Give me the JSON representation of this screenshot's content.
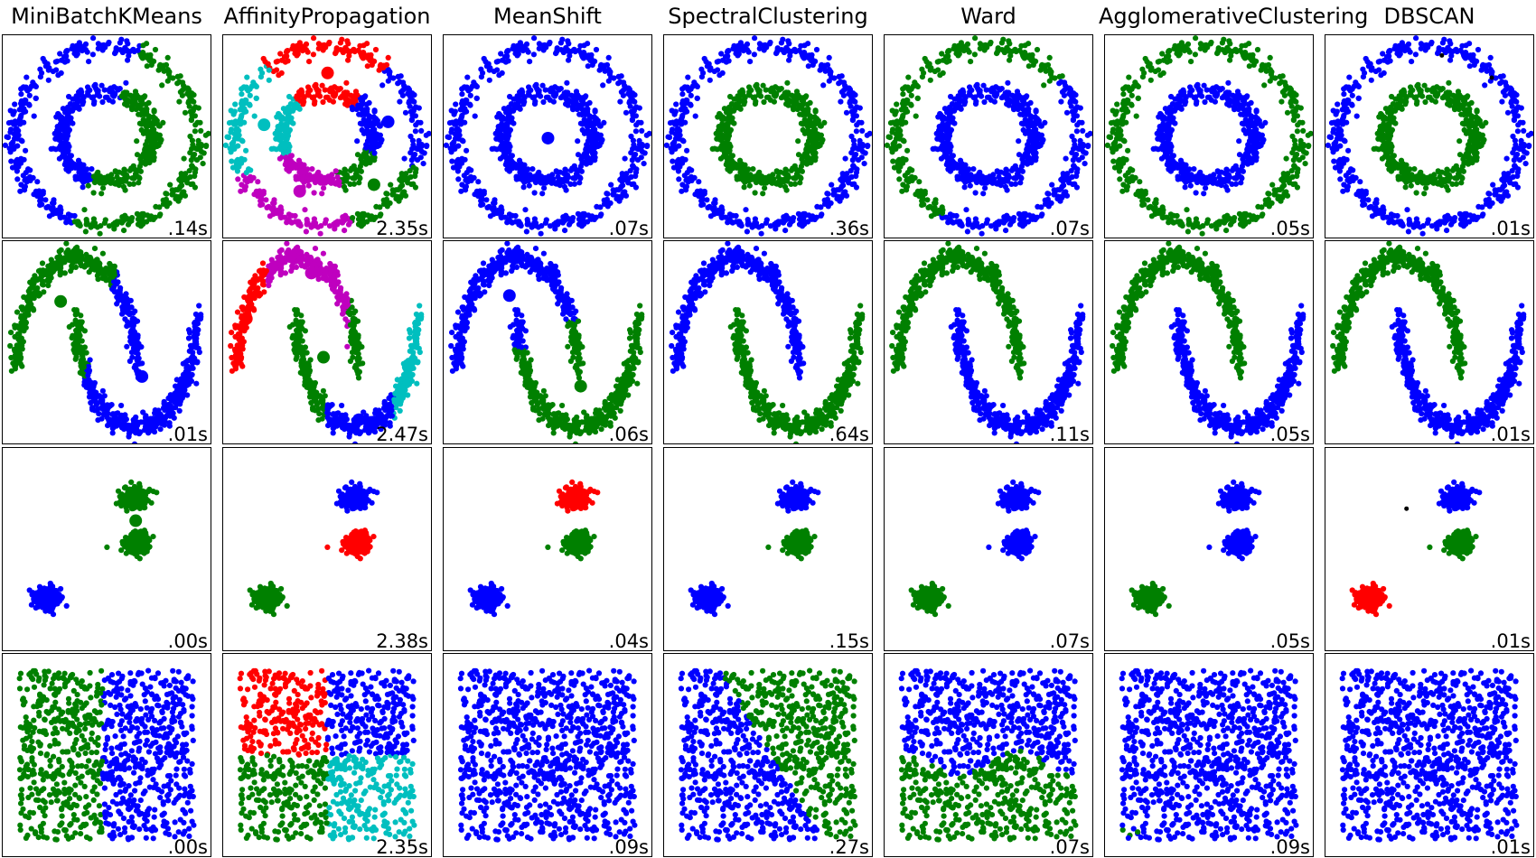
{
  "chart_data": {
    "type": "scatter",
    "grid": false,
    "axes_ticks": false,
    "xlim": [
      -2.5,
      2.5
    ],
    "ylim": [
      -2.5,
      2.5
    ],
    "columns": [
      "MiniBatchKMeans",
      "AffinityPropagation",
      "MeanShift",
      "SpectralClustering",
      "Ward",
      "AgglomerativeClustering",
      "DBSCAN"
    ],
    "timings": [
      [
        ".14s",
        "2.35s",
        ".07s",
        ".36s",
        ".07s",
        ".05s",
        ".01s"
      ],
      [
        ".01s",
        "2.47s",
        ".06s",
        ".64s",
        ".11s",
        ".05s",
        ".01s"
      ],
      [
        ".00s",
        "2.38s",
        ".04s",
        ".15s",
        ".07s",
        ".05s",
        ".01s"
      ],
      [
        ".00s",
        "2.35s",
        ".09s",
        ".27s",
        ".07s",
        ".09s",
        ".01s"
      ]
    ],
    "colors": {
      "blue": "#0000ff",
      "green": "#008000",
      "red": "#ff0000",
      "cyan": "#00bfbf",
      "magenta": "#bf00bf",
      "noise": "#000000"
    }
  }
}
